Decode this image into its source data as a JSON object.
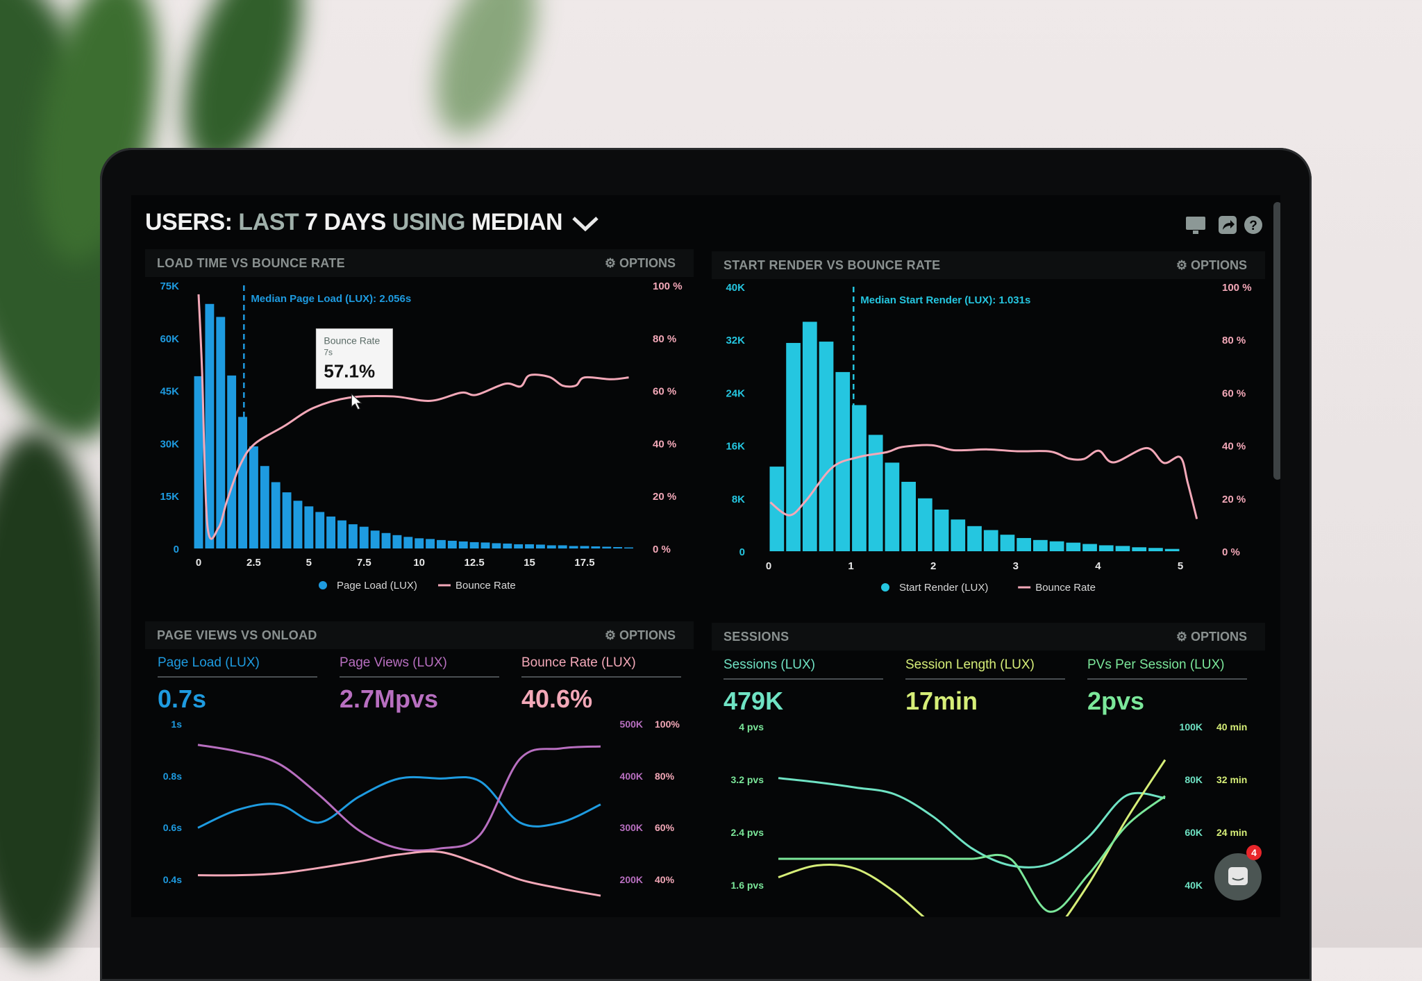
{
  "header": {
    "title_parts": [
      "USERS:",
      "LAST",
      "7 DAYS",
      "USING",
      "MEDIAN"
    ],
    "dropdown_icon": "chevron-down-icon",
    "icons": [
      "monitor-icon",
      "share-icon",
      "help-icon"
    ]
  },
  "colors": {
    "page_load": "#1e9be0",
    "start_render": "#25c6e0",
    "bounce": "#f3a8b8",
    "page_views": "#b86fc0",
    "sessions": "#6fe3c4",
    "session_length": "#d6ee78",
    "pvs_per_session": "#7be79a",
    "badge": "#e8262b"
  },
  "panels": {
    "load_time": {
      "title": "LOAD TIME VS BOUNCE RATE",
      "options": "OPTIONS"
    },
    "start_render": {
      "title": "START RENDER VS BOUNCE RATE",
      "options": "OPTIONS"
    },
    "page_views": {
      "title": "PAGE VIEWS VS ONLOAD",
      "options": "OPTIONS",
      "metrics": [
        {
          "label": "Page Load (LUX)",
          "value": "0.7s"
        },
        {
          "label": "Page Views (LUX)",
          "value": "2.7Mpvs"
        },
        {
          "label": "Bounce Rate (LUX)",
          "value": "40.6%"
        }
      ]
    },
    "sessions": {
      "title": "SESSIONS",
      "options": "OPTIONS",
      "metrics": [
        {
          "label": "Sessions (LUX)",
          "value": "479K"
        },
        {
          "label": "Session Length (LUX)",
          "value": "17min"
        },
        {
          "label": "PVs Per Session (LUX)",
          "value": "2pvs"
        }
      ]
    }
  },
  "chat": {
    "badge_count": "4"
  },
  "chart_data": [
    {
      "type": "bar",
      "title": "LOAD TIME VS BOUNCE RATE",
      "x_ticks": [
        "0",
        "2.5",
        "5",
        "7.5",
        "10",
        "12.5",
        "15",
        "17.5"
      ],
      "x_tick_values": [
        0,
        2.5,
        5,
        7.5,
        10,
        12.5,
        15,
        17.5
      ],
      "y_ticks": [
        "0",
        "15K",
        "30K",
        "45K",
        "60K",
        "75K"
      ],
      "y2_ticks": [
        "0 %",
        "20 %",
        "40 %",
        "60 %",
        "80 %",
        "100 %"
      ],
      "ylim": [
        0,
        75000
      ],
      "y2lim": [
        0,
        100
      ],
      "xlim": [
        -0.25,
        19.75
      ],
      "grid": false,
      "legend": "bottom",
      "median": {
        "x": 2.056,
        "label": "Median Page Load (LUX): 2.056s"
      },
      "tooltip": {
        "title": "Bounce Rate",
        "x_label": "7s",
        "value": "57.1%",
        "x": 7,
        "y": 57.1
      },
      "bar_series": {
        "name": "Page Load (LUX)",
        "bin_width": 0.5,
        "x": [
          0,
          0.5,
          1,
          1.5,
          2,
          2.5,
          3,
          3.5,
          4,
          4.5,
          5,
          5.5,
          6,
          6.5,
          7,
          7.5,
          8,
          8.5,
          9,
          9.5,
          10,
          10.5,
          11,
          11.5,
          12,
          12.5,
          13,
          13.5,
          14,
          14.5,
          15,
          15.5,
          16,
          16.5,
          17,
          17.5,
          18,
          18.5,
          19,
          19.5
        ],
        "values": [
          49100,
          69700,
          66000,
          49300,
          37500,
          29100,
          23500,
          18900,
          16000,
          13600,
          12000,
          10400,
          9100,
          8000,
          6900,
          6200,
          5100,
          4400,
          3800,
          3300,
          2900,
          2700,
          2400,
          2200,
          2000,
          1800,
          1700,
          1500,
          1400,
          1200,
          1200,
          1100,
          900,
          900,
          700,
          700,
          600,
          500,
          400,
          300
        ]
      },
      "line_series": {
        "name": "Bounce Rate",
        "x": [
          0,
          0.16,
          0.4,
          0.9,
          1.3,
          1.9,
          2.55,
          3.9,
          5.2,
          6.8,
          8.8,
          10.5,
          11.9,
          12.6,
          13.9,
          14.6,
          15,
          15.9,
          16.5,
          17.1,
          17.5,
          18.7,
          19.5
        ],
        "values": [
          96.6,
          67,
          8.7,
          7.8,
          18.4,
          32,
          39.8,
          46.6,
          53.4,
          57.3,
          57.8,
          56.1,
          59.2,
          58.4,
          62.6,
          61.6,
          65.8,
          65.2,
          61.9,
          61.9,
          65,
          64.3,
          65
        ]
      }
    },
    {
      "type": "bar",
      "title": "START RENDER VS BOUNCE RATE",
      "x_ticks": [
        "0",
        "1",
        "2",
        "3",
        "4",
        "5"
      ],
      "x_tick_values": [
        0,
        1,
        2,
        3,
        4,
        5
      ],
      "y_ticks": [
        "0",
        "8K",
        "16K",
        "24K",
        "32K",
        "40K"
      ],
      "y2_ticks": [
        "0 %",
        "20 %",
        "40 %",
        "60 %",
        "80 %",
        "100 %"
      ],
      "ylim": [
        0,
        40000
      ],
      "y2lim": [
        0,
        100
      ],
      "xlim": [
        0,
        5.2
      ],
      "grid": false,
      "legend": "bottom",
      "median": {
        "x": 1.031,
        "label": "Median Start Render (LUX): 1.031s"
      },
      "bar_series": {
        "name": "Start Render (LUX)",
        "bin_width": 0.2,
        "x": [
          0.2,
          0.4,
          0.6,
          0.8,
          1.0,
          1.2,
          1.4,
          1.6,
          1.8,
          2.0,
          2.2,
          2.4,
          2.6,
          2.8,
          3.0,
          3.2,
          3.4,
          3.6,
          3.8,
          4.0,
          4.2,
          4.4,
          4.6,
          4.8,
          5.0
        ],
        "values": [
          12800,
          31500,
          34700,
          31700,
          27100,
          22100,
          17600,
          13400,
          10500,
          8000,
          6300,
          4800,
          3800,
          3200,
          2500,
          2000,
          1700,
          1500,
          1300,
          1100,
          900,
          800,
          600,
          500,
          350
        ]
      },
      "line_series": {
        "name": "Bounce Rate",
        "x": [
          0.02,
          0.25,
          0.45,
          0.77,
          1.08,
          1.44,
          1.62,
          1.98,
          2.25,
          2.66,
          3.02,
          3.42,
          3.65,
          3.83,
          4.01,
          4.19,
          4.59,
          4.8,
          5.0,
          5.09,
          5.2
        ],
        "values": [
          18.5,
          13.6,
          19,
          31.6,
          35.5,
          37.5,
          39.4,
          40.1,
          38.2,
          38.5,
          37.8,
          37.7,
          35,
          34.9,
          38,
          33.6,
          39,
          33.4,
          35.5,
          25.8,
          12.2
        ]
      }
    },
    {
      "type": "line",
      "title": "PAGE VIEWS VS ONLOAD",
      "y_ticks": [
        "1s",
        "0.8s",
        "0.6s",
        "0.4s"
      ],
      "y2_ticks": [
        "500K",
        "400K",
        "300K",
        "200K"
      ],
      "y3_ticks": [
        "100%",
        "80%",
        "60%",
        "40%"
      ],
      "x": [
        0,
        1,
        2,
        3,
        4,
        5,
        6,
        7,
        8,
        9,
        10
      ],
      "series": [
        {
          "name": "Page Load (LUX)",
          "axis": "s",
          "ylim": [
            0.4,
            1.0
          ],
          "values": [
            0.6,
            0.67,
            0.69,
            0.62,
            0.72,
            0.79,
            0.79,
            0.78,
            0.62,
            0.62,
            0.69
          ]
        },
        {
          "name": "Page Views (LUX)",
          "axis": "pvs",
          "ylim": [
            200000,
            500000
          ],
          "values": [
            460000,
            447000,
            424000,
            364000,
            295000,
            260000,
            260000,
            286000,
            433000,
            453000,
            457000
          ]
        },
        {
          "name": "Bounce Rate (LUX)",
          "axis": "%",
          "ylim": [
            40,
            100
          ],
          "values": [
            41.7,
            41.7,
            42.4,
            44.5,
            47,
            49.7,
            50.7,
            45.9,
            40,
            36.6,
            33.8
          ]
        }
      ]
    },
    {
      "type": "line",
      "title": "SESSIONS",
      "y_ticks": [
        "4 pvs",
        "3.2 pvs",
        "2.4 pvs",
        "1.6 pvs"
      ],
      "y2_ticks": [
        "100K",
        "80K",
        "60K",
        "40K"
      ],
      "y3_ticks": [
        "40 min",
        "32 min",
        "24 min"
      ],
      "x": [
        0,
        1,
        2,
        3,
        4,
        5,
        6,
        7,
        8,
        9,
        10
      ],
      "series": [
        {
          "name": "Sessions (LUX)",
          "axis": "K",
          "ylim": [
            40000,
            100000
          ],
          "values": [
            80600,
            79000,
            77000,
            74500,
            66000,
            54000,
            47500,
            48000,
            58000,
            74000,
            73000
          ]
        },
        {
          "name": "Session Length (LUX)",
          "axis": "min",
          "ylim": [
            16,
            40
          ],
          "values": [
            17.2,
            19,
            18.5,
            15,
            10,
            6,
            4,
            8,
            16,
            26,
            35
          ]
        },
        {
          "name": "PVs Per Session (LUX)",
          "axis": "pvs",
          "ylim": [
            1.6,
            4
          ],
          "values": [
            2.0,
            2.0,
            2.0,
            2.0,
            2.0,
            2.0,
            2.0,
            1.2,
            1.75,
            2.5,
            2.95
          ]
        }
      ]
    }
  ]
}
